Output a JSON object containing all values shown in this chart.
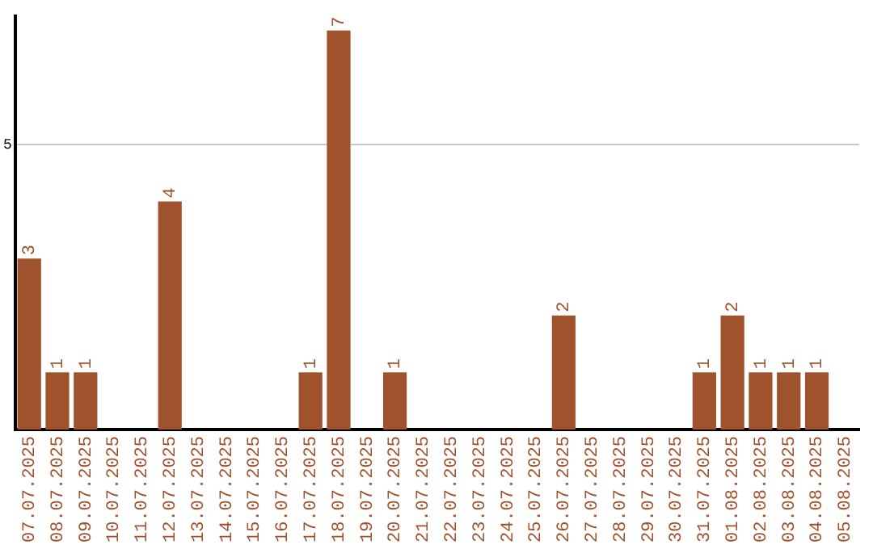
{
  "chart_data": {
    "type": "bar",
    "categories": [
      "07.07.2025",
      "08.07.2025",
      "09.07.2025",
      "10.07.2025",
      "11.07.2025",
      "12.07.2025",
      "13.07.2025",
      "14.07.2025",
      "15.07.2025",
      "16.07.2025",
      "17.07.2025",
      "18.07.2025",
      "19.07.2025",
      "20.07.2025",
      "21.07.2025",
      "22.07.2025",
      "23.07.2025",
      "24.07.2025",
      "25.07.2025",
      "26.07.2025",
      "27.07.2025",
      "28.07.2025",
      "29.07.2025",
      "30.07.2025",
      "31.07.2025",
      "01.08.2025",
      "02.08.2025",
      "03.08.2025",
      "04.08.2025",
      "05.08.2025"
    ],
    "values": [
      3,
      1,
      1,
      0,
      0,
      4,
      0,
      0,
      0,
      0,
      1,
      7,
      0,
      1,
      0,
      0,
      0,
      0,
      0,
      2,
      0,
      0,
      0,
      0,
      1,
      2,
      1,
      1,
      1,
      0
    ],
    "value_labels": [
      "3",
      "1",
      "1",
      null,
      null,
      "4",
      null,
      null,
      null,
      null,
      "1",
      "7",
      null,
      "1",
      null,
      null,
      null,
      null,
      null,
      "2",
      null,
      null,
      null,
      null,
      "1",
      "2",
      "1",
      "1",
      "1",
      null
    ],
    "color": "#a0522d",
    "ylim": [
      0,
      7.25
    ],
    "yticks": [
      5
    ],
    "grid": "y",
    "legend": false
  }
}
